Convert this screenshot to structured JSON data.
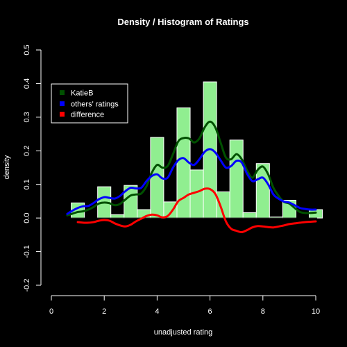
{
  "chart_data": {
    "type": "histogram",
    "title": "Density / Histogram of Ratings",
    "xlabel": "unadjusted rating",
    "ylabel": "density",
    "xlim": [
      0,
      10
    ],
    "ylim": [
      -0.2,
      0.5
    ],
    "x_ticks": [
      "0",
      "2",
      "4",
      "6",
      "8",
      "10"
    ],
    "y_ticks": [
      "-0.2",
      "-0.1",
      "0.0",
      "0.1",
      "0.2",
      "0.3",
      "0.4",
      "0.5"
    ],
    "x_tick_values": [
      0,
      2,
      4,
      6,
      8,
      10
    ],
    "y_tick_values": [
      -0.2,
      -0.1,
      0.0,
      0.1,
      0.2,
      0.3,
      0.4,
      0.5
    ],
    "grid": false,
    "legend_position": "top-left",
    "histogram": {
      "color": "#90ee90",
      "bins": [
        {
          "x0": 0.75,
          "x1": 1.25,
          "density": 0.045
        },
        {
          "x0": 1.25,
          "x1": 1.75,
          "density": 0.0
        },
        {
          "x0": 1.75,
          "x1": 2.25,
          "density": 0.093
        },
        {
          "x0": 2.25,
          "x1": 2.75,
          "density": 0.01
        },
        {
          "x0": 2.75,
          "x1": 3.25,
          "density": 0.097
        },
        {
          "x0": 3.25,
          "x1": 3.75,
          "density": 0.025
        },
        {
          "x0": 3.75,
          "x1": 4.25,
          "density": 0.24
        },
        {
          "x0": 4.25,
          "x1": 4.75,
          "density": 0.048
        },
        {
          "x0": 4.75,
          "x1": 5.25,
          "density": 0.328
        },
        {
          "x0": 5.25,
          "x1": 5.75,
          "density": 0.143
        },
        {
          "x0": 5.75,
          "x1": 6.25,
          "density": 0.405
        },
        {
          "x0": 6.25,
          "x1": 6.75,
          "density": 0.078
        },
        {
          "x0": 6.75,
          "x1": 7.25,
          "density": 0.232
        },
        {
          "x0": 7.25,
          "x1": 7.75,
          "density": 0.016
        },
        {
          "x0": 7.75,
          "x1": 8.25,
          "density": 0.162
        },
        {
          "x0": 8.25,
          "x1": 8.75,
          "density": 0.003
        },
        {
          "x0": 8.75,
          "x1": 9.25,
          "density": 0.053
        },
        {
          "x0": 9.25,
          "x1": 9.75,
          "density": 0.0
        },
        {
          "x0": 9.75,
          "x1": 10.25,
          "density": 0.025
        }
      ]
    },
    "series": [
      {
        "name": "KatieB",
        "color": "#005000",
        "x": [
          0.6,
          0.8,
          1.0,
          1.2,
          1.4,
          1.6,
          1.8,
          2.0,
          2.2,
          2.4,
          2.6,
          2.8,
          3.0,
          3.2,
          3.4,
          3.6,
          3.8,
          4.0,
          4.2,
          4.4,
          4.6,
          4.8,
          5.0,
          5.2,
          5.4,
          5.6,
          5.8,
          6.0,
          6.2,
          6.4,
          6.6,
          6.8,
          7.0,
          7.2,
          7.4,
          7.6,
          7.8,
          8.0,
          8.2,
          8.4,
          8.6,
          8.8,
          9.0,
          9.2,
          9.4,
          9.6,
          9.8,
          10.0
        ],
        "y": [
          0.008,
          0.013,
          0.018,
          0.02,
          0.025,
          0.033,
          0.043,
          0.046,
          0.044,
          0.038,
          0.042,
          0.055,
          0.067,
          0.07,
          0.073,
          0.095,
          0.135,
          0.158,
          0.15,
          0.155,
          0.19,
          0.228,
          0.238,
          0.237,
          0.225,
          0.237,
          0.27,
          0.287,
          0.27,
          0.225,
          0.18,
          0.175,
          0.19,
          0.175,
          0.142,
          0.12,
          0.143,
          0.153,
          0.13,
          0.09,
          0.065,
          0.048,
          0.043,
          0.03,
          0.018,
          0.015,
          0.015,
          0.016
        ]
      },
      {
        "name": "others' ratings",
        "color": "#0000ff",
        "x": [
          0.6,
          0.8,
          1.0,
          1.2,
          1.4,
          1.6,
          1.8,
          2.0,
          2.2,
          2.4,
          2.6,
          2.8,
          3.0,
          3.2,
          3.4,
          3.6,
          3.8,
          4.0,
          4.2,
          4.4,
          4.6,
          4.8,
          5.0,
          5.2,
          5.4,
          5.6,
          5.8,
          6.0,
          6.2,
          6.4,
          6.6,
          6.8,
          7.0,
          7.2,
          7.4,
          7.6,
          7.8,
          8.0,
          8.2,
          8.4,
          8.6,
          8.8,
          9.0,
          9.2,
          9.4,
          9.6,
          9.8,
          10.0
        ],
        "y": [
          0.012,
          0.022,
          0.03,
          0.035,
          0.036,
          0.045,
          0.056,
          0.062,
          0.06,
          0.058,
          0.066,
          0.08,
          0.09,
          0.088,
          0.09,
          0.11,
          0.125,
          0.13,
          0.118,
          0.12,
          0.15,
          0.172,
          0.178,
          0.165,
          0.158,
          0.175,
          0.197,
          0.205,
          0.195,
          0.172,
          0.15,
          0.155,
          0.17,
          0.165,
          0.132,
          0.11,
          0.115,
          0.12,
          0.1,
          0.07,
          0.057,
          0.049,
          0.046,
          0.038,
          0.03,
          0.027,
          0.025,
          0.025
        ]
      },
      {
        "name": "difference",
        "color": "#ff0000",
        "x": [
          1.0,
          1.2,
          1.4,
          1.6,
          1.8,
          2.0,
          2.2,
          2.4,
          2.6,
          2.8,
          3.0,
          3.2,
          3.4,
          3.6,
          3.8,
          4.0,
          4.2,
          4.4,
          4.6,
          4.8,
          5.0,
          5.2,
          5.4,
          5.6,
          5.8,
          6.0,
          6.2,
          6.4,
          6.6,
          6.8,
          7.0,
          7.2,
          7.4,
          7.6,
          7.8,
          8.0,
          8.2,
          8.4,
          8.6,
          8.8,
          9.0,
          9.2,
          9.4,
          9.6,
          9.8,
          10.0
        ],
        "y": [
          -0.012,
          -0.014,
          -0.014,
          -0.012,
          -0.008,
          -0.006,
          -0.008,
          -0.016,
          -0.022,
          -0.025,
          -0.02,
          -0.01,
          -0.002,
          0.006,
          0.01,
          0.008,
          0.002,
          0.006,
          0.025,
          0.05,
          0.06,
          0.07,
          0.075,
          0.08,
          0.087,
          0.086,
          0.072,
          0.035,
          -0.01,
          -0.032,
          -0.038,
          -0.042,
          -0.036,
          -0.028,
          -0.024,
          -0.025,
          -0.027,
          -0.028,
          -0.025,
          -0.022,
          -0.018,
          -0.016,
          -0.014,
          -0.012,
          -0.011,
          -0.01
        ]
      }
    ]
  }
}
